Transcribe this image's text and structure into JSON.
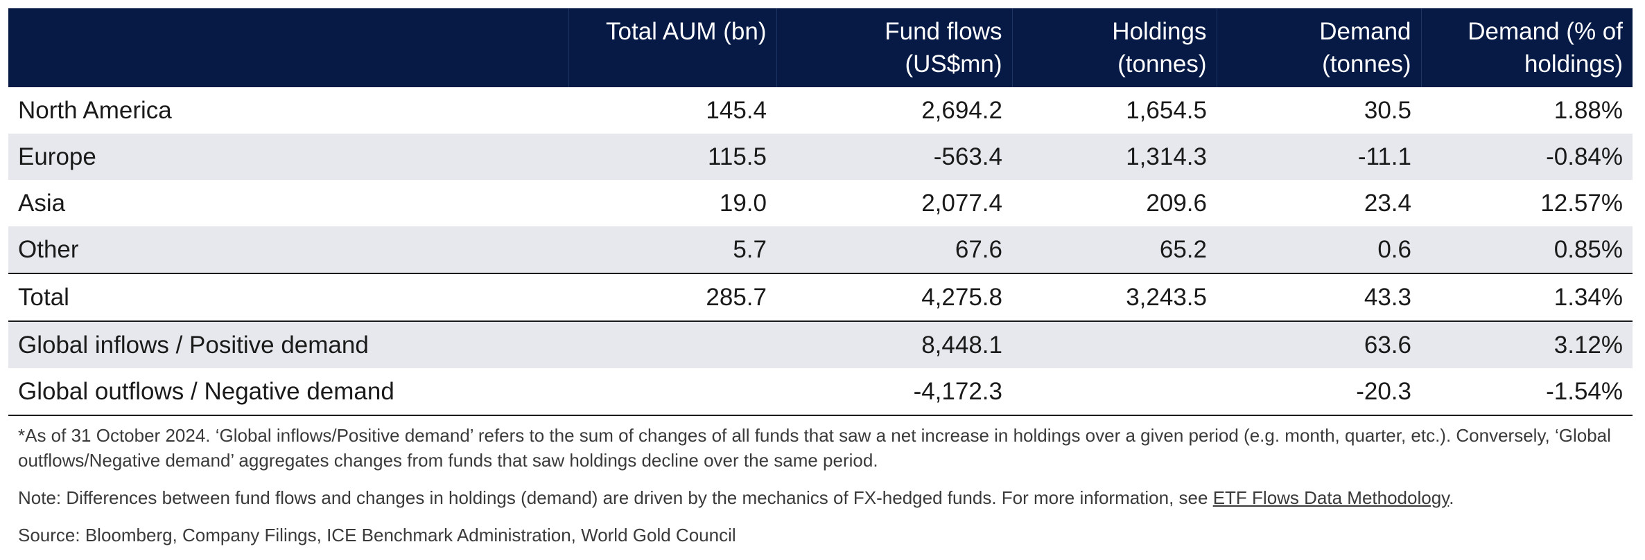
{
  "table": {
    "headers": [
      "",
      "Total AUM (bn)",
      "Fund flows (US$mn)",
      "Holdings (tonnes)",
      "Demand (tonnes)",
      "Demand (% of holdings)"
    ],
    "header_lines": [
      [
        ""
      ],
      [
        "Total AUM (bn)"
      ],
      [
        "Fund flows",
        "(US$mn)"
      ],
      [
        "Holdings",
        "(tonnes)"
      ],
      [
        "Demand",
        "(tonnes)"
      ],
      [
        "Demand (% of",
        "holdings)"
      ]
    ],
    "rows": [
      {
        "region": "North America",
        "aum": "145.4",
        "flows": "2,694.2",
        "holdings": "1,654.5",
        "demand": "30.5",
        "demand_pct": "1.88%"
      },
      {
        "region": "Europe",
        "aum": "115.5",
        "flows": "-563.4",
        "holdings": "1,314.3",
        "demand": "-11.1",
        "demand_pct": "-0.84%"
      },
      {
        "region": "Asia",
        "aum": "19.0",
        "flows": "2,077.4",
        "holdings": "209.6",
        "demand": "23.4",
        "demand_pct": "12.57%"
      },
      {
        "region": "Other",
        "aum": "5.7",
        "flows": "67.6",
        "holdings": "65.2",
        "demand": "0.6",
        "demand_pct": "0.85%"
      },
      {
        "region": "Total",
        "aum": "285.7",
        "flows": "4,275.8",
        "holdings": "3,243.5",
        "demand": "43.3",
        "demand_pct": "1.34%"
      },
      {
        "region": "Global inflows / Positive demand",
        "aum": "",
        "flows": "8,448.1",
        "holdings": "",
        "demand": "63.6",
        "demand_pct": "3.12%"
      },
      {
        "region": "Global outflows / Negative demand",
        "aum": "",
        "flows": "-4,172.3",
        "holdings": "",
        "demand": "-20.3",
        "demand_pct": "-1.54%"
      }
    ]
  },
  "notes": {
    "footnote": "*As of 31 October 2024. ‘Global inflows/Positive demand’ refers to the sum of changes of all funds that saw a net increase in holdings over a given period (e.g. month, quarter, etc.). Conversely, ‘Global outflows/Negative demand’ aggregates changes from funds that saw holdings decline over the same period.",
    "note_prefix": "Note: Differences between fund flows and changes in holdings (demand) are driven by the mechanics of FX-hedged funds. For more information, see ",
    "note_link": "ETF Flows Data Methodology",
    "note_suffix": ".",
    "source": "Source: Bloomberg, Company Filings, ICE Benchmark Administration, World Gold Council"
  },
  "colors": {
    "header_bg": "#061a45",
    "shade_row": "#e6e8ed",
    "text": "#1a1a1a"
  }
}
